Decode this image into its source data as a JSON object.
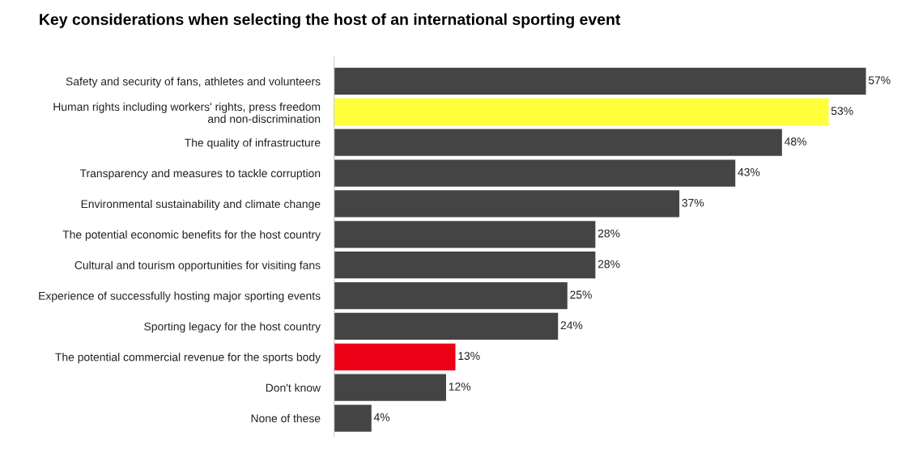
{
  "chart_data": {
    "type": "bar",
    "orientation": "horizontal",
    "title": "Key considerations when selecting the host of an international sporting event",
    "categories": [
      "Safety and security of fans, athletes and volunteers",
      "Human rights including workers' rights, press freedom\nand non-discrimination",
      "The quality of infrastructure",
      "Transparency and measures to tackle corruption",
      "Environmental sustainability and climate change",
      "The potential economic benefits for the host country",
      "Cultural and tourism opportunities for visiting fans",
      "Experience of successfully hosting major sporting events",
      "Sporting legacy for the host country",
      "The potential commercial revenue for the sports body",
      "Don't know",
      "None of these"
    ],
    "values": [
      57,
      53,
      48,
      43,
      37,
      28,
      28,
      25,
      24,
      13,
      12,
      4
    ],
    "colors": [
      "#444444",
      "#ffff3c",
      "#444444",
      "#444444",
      "#444444",
      "#444444",
      "#444444",
      "#444444",
      "#444444",
      "#ee0016",
      "#444444",
      "#444444"
    ],
    "value_labels": [
      "57%",
      "53%",
      "48%",
      "43%",
      "37%",
      "28%",
      "28%",
      "25%",
      "24%",
      "13%",
      "12%",
      "4%"
    ],
    "tick_labels": "y",
    "grid": false,
    "legend": false
  }
}
